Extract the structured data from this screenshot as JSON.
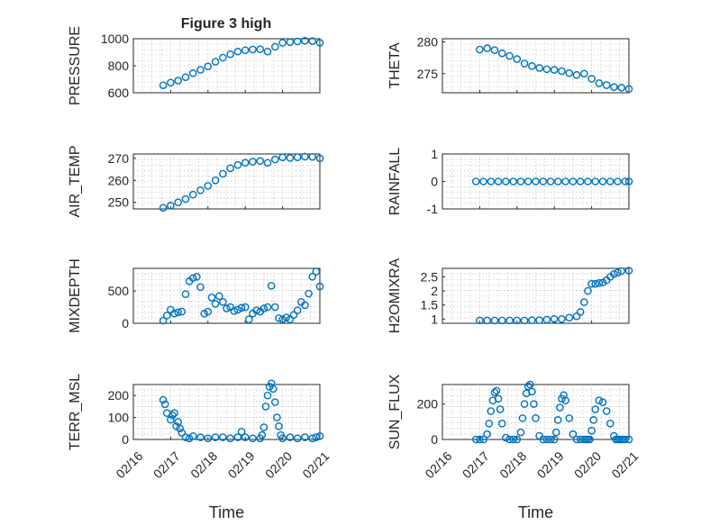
{
  "figure": {
    "title": "Figure 3 high"
  },
  "colors": {
    "series": "#0072BD",
    "axis": "#262626",
    "grid": "#b5b5b5"
  },
  "xaxis": {
    "label": "Time",
    "ticks": [
      "02/16",
      "02/17",
      "02/18",
      "02/19",
      "02/20",
      "02/21"
    ],
    "tick_values": [
      16,
      17,
      18,
      19,
      20,
      21
    ],
    "range": [
      16,
      21
    ]
  },
  "chart_data": [
    {
      "type": "scatter",
      "ylabel": "PRESSURE",
      "yticks": [
        600,
        800,
        1000
      ],
      "ylim": [
        600,
        1000
      ],
      "x": [
        16.8,
        17.0,
        17.2,
        17.4,
        17.6,
        17.8,
        18.0,
        18.2,
        18.4,
        18.6,
        18.8,
        19.0,
        19.2,
        19.4,
        19.6,
        19.8,
        20.0,
        20.2,
        20.4,
        20.6,
        20.8,
        21.0
      ],
      "y": [
        655,
        675,
        690,
        715,
        745,
        770,
        795,
        830,
        860,
        885,
        905,
        915,
        920,
        922,
        905,
        940,
        970,
        975,
        980,
        985,
        982,
        970
      ]
    },
    {
      "type": "scatter",
      "ylabel": "THETA",
      "yticks": [
        275,
        280
      ],
      "ylim": [
        272,
        280.5
      ],
      "x": [
        17.0,
        17.2,
        17.4,
        17.6,
        17.8,
        18.0,
        18.2,
        18.4,
        18.6,
        18.8,
        19.0,
        19.2,
        19.4,
        19.6,
        19.8,
        20.0,
        20.2,
        20.4,
        20.6,
        20.8,
        21.0
      ],
      "y": [
        278.8,
        279.0,
        278.7,
        278.2,
        277.8,
        277.3,
        276.6,
        276.2,
        275.9,
        275.7,
        275.6,
        275.4,
        275.1,
        274.8,
        275.0,
        274.2,
        273.5,
        273.2,
        272.9,
        272.8,
        272.6
      ]
    },
    {
      "type": "scatter",
      "ylabel": "AIR_TEMP",
      "yticks": [
        250,
        260,
        270
      ],
      "ylim": [
        247,
        272
      ],
      "x": [
        16.8,
        17.0,
        17.2,
        17.4,
        17.6,
        17.8,
        18.0,
        18.2,
        18.4,
        18.6,
        18.8,
        19.0,
        19.2,
        19.4,
        19.6,
        19.8,
        20.0,
        20.2,
        20.4,
        20.6,
        20.8,
        21.0
      ],
      "y": [
        247.5,
        248.5,
        250,
        251.5,
        253.5,
        255.5,
        257.5,
        260,
        263,
        265.5,
        267,
        268,
        268.5,
        268.8,
        268,
        269.5,
        270.5,
        270.2,
        270.5,
        270.8,
        270.7,
        270
      ]
    },
    {
      "type": "scatter",
      "ylabel": "RAINFALL",
      "yticks": [
        -1,
        0,
        1
      ],
      "ylim": [
        -1,
        1
      ],
      "x": [
        16.9,
        17.1,
        17.3,
        17.5,
        17.7,
        17.9,
        18.1,
        18.3,
        18.5,
        18.7,
        18.9,
        19.1,
        19.3,
        19.5,
        19.7,
        19.9,
        20.1,
        20.3,
        20.5,
        20.7,
        20.9,
        21.0
      ],
      "y": [
        0,
        0,
        0,
        0,
        0,
        0,
        0,
        0,
        0,
        0,
        0,
        0,
        0,
        0,
        0,
        0,
        0,
        0,
        0,
        0,
        0,
        0
      ]
    },
    {
      "type": "scatter",
      "ylabel": "MIXDEPTH",
      "yticks": [
        0,
        500
      ],
      "ylim": [
        0,
        850
      ],
      "x": [
        16.8,
        16.9,
        17.0,
        17.1,
        17.2,
        17.3,
        17.4,
        17.5,
        17.6,
        17.7,
        17.8,
        17.9,
        18.0,
        18.1,
        18.2,
        18.3,
        18.4,
        18.5,
        18.6,
        18.7,
        18.8,
        18.9,
        19.0,
        19.1,
        19.2,
        19.3,
        19.4,
        19.5,
        19.6,
        19.7,
        19.8,
        19.9,
        20.0,
        20.1,
        20.2,
        20.3,
        20.4,
        20.5,
        20.6,
        20.7,
        20.8,
        20.9,
        21.0
      ],
      "y": [
        40,
        120,
        210,
        150,
        170,
        180,
        450,
        650,
        700,
        720,
        560,
        150,
        180,
        400,
        300,
        420,
        330,
        230,
        250,
        190,
        210,
        240,
        250,
        60,
        150,
        200,
        180,
        230,
        250,
        580,
        250,
        80,
        60,
        90,
        60,
        130,
        200,
        330,
        280,
        460,
        720,
        800,
        570
      ]
    },
    {
      "type": "scatter",
      "ylabel": "H2OMIXRA",
      "yticks": [
        1,
        1.5,
        2,
        2.5
      ],
      "ylim": [
        0.85,
        2.8
      ],
      "x": [
        17.0,
        17.2,
        17.4,
        17.6,
        17.8,
        18.0,
        18.2,
        18.4,
        18.6,
        18.8,
        19.0,
        19.2,
        19.4,
        19.6,
        19.7,
        19.8,
        19.9,
        20.0,
        20.1,
        20.2,
        20.3,
        20.4,
        20.5,
        20.6,
        20.7,
        20.8,
        21.0
      ],
      "y": [
        0.95,
        0.95,
        0.95,
        0.95,
        0.95,
        0.95,
        0.95,
        0.96,
        0.96,
        0.98,
        1.0,
        1.0,
        1.05,
        1.1,
        1.25,
        1.6,
        2.0,
        2.25,
        2.25,
        2.28,
        2.3,
        2.38,
        2.5,
        2.6,
        2.65,
        2.7,
        2.72
      ]
    },
    {
      "type": "scatter",
      "ylabel": "TERR_MSL",
      "yticks": [
        0,
        100,
        200
      ],
      "ylim": [
        0,
        250
      ],
      "x": [
        16.8,
        16.85,
        16.9,
        17.0,
        17.05,
        17.1,
        17.15,
        17.2,
        17.25,
        17.3,
        17.4,
        17.5,
        17.6,
        17.8,
        18.0,
        18.2,
        18.4,
        18.6,
        18.8,
        18.9,
        19.0,
        19.2,
        19.4,
        19.45,
        19.5,
        19.55,
        19.6,
        19.65,
        19.7,
        19.75,
        19.8,
        19.85,
        19.9,
        19.95,
        20.0,
        20.2,
        20.4,
        20.6,
        20.8,
        20.9,
        21.0
      ],
      "y": [
        180,
        160,
        120,
        90,
        110,
        120,
        60,
        80,
        50,
        30,
        10,
        5,
        15,
        10,
        5,
        10,
        10,
        5,
        10,
        35,
        10,
        5,
        5,
        20,
        55,
        150,
        200,
        240,
        255,
        230,
        170,
        100,
        60,
        20,
        5,
        10,
        5,
        10,
        5,
        10,
        15
      ]
    },
    {
      "type": "scatter",
      "ylabel": "SUN_FLUX",
      "yticks": [
        0,
        200
      ],
      "ylim": [
        0,
        310
      ],
      "x": [
        16.9,
        17.0,
        17.1,
        17.2,
        17.25,
        17.3,
        17.35,
        17.4,
        17.45,
        17.5,
        17.55,
        17.6,
        17.7,
        17.8,
        17.9,
        18.0,
        18.1,
        18.15,
        18.2,
        18.25,
        18.3,
        18.35,
        18.4,
        18.45,
        18.5,
        18.6,
        18.7,
        18.8,
        18.9,
        19.0,
        19.05,
        19.1,
        19.15,
        19.2,
        19.25,
        19.3,
        19.4,
        19.5,
        19.6,
        19.7,
        19.8,
        19.85,
        19.9,
        19.95,
        20.0,
        20.05,
        20.1,
        20.2,
        20.3,
        20.4,
        20.5,
        20.6,
        20.65,
        20.7,
        20.75,
        20.8,
        20.85,
        20.9,
        21.0
      ],
      "y": [
        0,
        0,
        0,
        30,
        90,
        160,
        220,
        265,
        275,
        230,
        170,
        90,
        10,
        0,
        0,
        0,
        40,
        120,
        200,
        260,
        300,
        310,
        270,
        200,
        120,
        20,
        0,
        0,
        0,
        0,
        40,
        110,
        180,
        230,
        250,
        220,
        120,
        30,
        0,
        0,
        0,
        0,
        0,
        0,
        50,
        110,
        170,
        220,
        210,
        160,
        90,
        20,
        0,
        0,
        0,
        0,
        0,
        0,
        0
      ]
    }
  ]
}
